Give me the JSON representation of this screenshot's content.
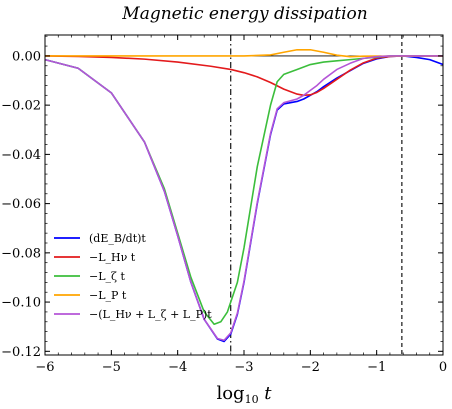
{
  "chart_data": {
    "type": "line",
    "title": "Magnetic energy dissipation",
    "xlabel": "log10 t",
    "ylabel": "",
    "xlim": [
      -6,
      0
    ],
    "ylim": [
      -0.1215,
      0.0085
    ],
    "x_ticks": [
      -6,
      -5,
      -4,
      -3,
      -2,
      -1,
      0
    ],
    "x_tick_labels": [
      "−6",
      "−5",
      "−4",
      "−3",
      "−2",
      "−1",
      "0"
    ],
    "y_ticks": [
      0.0,
      -0.02,
      -0.04,
      -0.06,
      -0.08,
      -0.1,
      -0.12
    ],
    "y_tick_labels": [
      "0.00",
      "−0.02",
      "−0.04",
      "−0.06",
      "−0.08",
      "−0.10",
      "−0.12"
    ],
    "grid": false,
    "legend_position": "lower-left",
    "reference_lines": [
      {
        "type": "vertical",
        "x": -3.2,
        "style": "dash-dot",
        "color": "#000000"
      },
      {
        "type": "vertical",
        "x": -0.62,
        "style": "dashed",
        "color": "#000000"
      },
      {
        "type": "horizontal",
        "y": 0.0,
        "style": "solid",
        "color": "#000000"
      }
    ],
    "series": [
      {
        "name": "(dE_B/dt)t",
        "color": "#0000ff",
        "x": [
          -6,
          -5.5,
          -5,
          -4.5,
          -4.2,
          -4.0,
          -3.8,
          -3.6,
          -3.4,
          -3.3,
          -3.2,
          -3.1,
          -3.0,
          -2.8,
          -2.6,
          -2.5,
          -2.4,
          -2.2,
          -2.1,
          -2.0,
          -1.9,
          -1.8,
          -1.6,
          -1.4,
          -1.2,
          -1.0,
          -0.8,
          -0.6,
          -0.4,
          -0.2,
          0
        ],
        "y": [
          -0.0015,
          -0.005,
          -0.015,
          -0.035,
          -0.055,
          -0.073,
          -0.092,
          -0.107,
          -0.115,
          -0.116,
          -0.113,
          -0.105,
          -0.092,
          -0.06,
          -0.032,
          -0.022,
          -0.0195,
          -0.0185,
          -0.0175,
          -0.016,
          -0.0145,
          -0.0125,
          -0.009,
          -0.006,
          -0.003,
          -0.0012,
          -0.0002,
          0.0,
          -0.0006,
          -0.0015,
          -0.0035
        ]
      },
      {
        "name": "−L_Hν t",
        "color": "#e31a1c",
        "x": [
          -6,
          -5.5,
          -5,
          -4.5,
          -4,
          -3.5,
          -3.2,
          -3.0,
          -2.8,
          -2.6,
          -2.4,
          -2.2,
          -2.1,
          -2.0,
          -1.9,
          -1.8,
          -1.6,
          -1.4,
          -1.2,
          -1.0,
          -0.8,
          -0.6,
          -0.4,
          -0.2,
          0
        ],
        "y": [
          0.0,
          -0.0002,
          -0.0006,
          -0.0013,
          -0.0025,
          -0.0042,
          -0.0055,
          -0.0068,
          -0.0085,
          -0.0108,
          -0.0135,
          -0.0155,
          -0.016,
          -0.0158,
          -0.0148,
          -0.0132,
          -0.0095,
          -0.0058,
          -0.0028,
          -0.0009,
          -0.0002,
          0.0,
          0.0,
          0.0,
          0.0
        ]
      },
      {
        "name": "−L_ζ t",
        "color": "#3cbe3c",
        "x": [
          -6,
          -5.5,
          -5,
          -4.5,
          -4.2,
          -4.0,
          -3.8,
          -3.6,
          -3.45,
          -3.35,
          -3.25,
          -3.1,
          -3.0,
          -2.8,
          -2.6,
          -2.5,
          -2.4,
          -2.2,
          -2.0,
          -1.8,
          -1.6,
          -1.4,
          -1.2,
          -1.0,
          -0.8,
          -0.6,
          -0.4,
          -0.2,
          0
        ],
        "y": [
          -0.0015,
          -0.005,
          -0.015,
          -0.035,
          -0.054,
          -0.072,
          -0.09,
          -0.104,
          -0.109,
          -0.108,
          -0.104,
          -0.092,
          -0.078,
          -0.045,
          -0.02,
          -0.0105,
          -0.0075,
          -0.0055,
          -0.0035,
          -0.0025,
          -0.002,
          -0.0015,
          -0.001,
          -0.0005,
          0.0,
          0.0,
          0.0,
          0.0,
          0.0
        ]
      },
      {
        "name": "−L_P t",
        "color": "#ffa500",
        "x": [
          -6,
          -3,
          -2.6,
          -2.4,
          -2.2,
          -2.0,
          -1.8,
          -1.6,
          -1.4,
          -1.2,
          0
        ],
        "y": [
          0.0,
          0.0,
          0.0004,
          0.0015,
          0.0025,
          0.0025,
          0.0015,
          0.0003,
          -0.0003,
          -0.0001,
          0.0
        ]
      },
      {
        "name": "−(L_Hν + L_ζ + L_P)t",
        "color": "#b455d7",
        "x": [
          -6,
          -5.5,
          -5,
          -4.5,
          -4.2,
          -4.0,
          -3.8,
          -3.6,
          -3.4,
          -3.3,
          -3.2,
          -3.1,
          -3.0,
          -2.8,
          -2.6,
          -2.5,
          -2.4,
          -2.2,
          -2.1,
          -2.0,
          -1.9,
          -1.8,
          -1.6,
          -1.4,
          -1.2,
          -1.0,
          -0.8,
          -0.6,
          -0.4,
          -0.2,
          0
        ],
        "y": [
          -0.0015,
          -0.005,
          -0.015,
          -0.035,
          -0.055,
          -0.073,
          -0.092,
          -0.107,
          -0.1148,
          -0.1155,
          -0.1125,
          -0.1045,
          -0.0915,
          -0.0595,
          -0.0315,
          -0.0215,
          -0.019,
          -0.0175,
          -0.016,
          -0.014,
          -0.012,
          -0.0095,
          -0.0055,
          -0.003,
          -0.001,
          -0.0003,
          0.0,
          0.0,
          0.0,
          0.0,
          0.0
        ]
      }
    ]
  }
}
